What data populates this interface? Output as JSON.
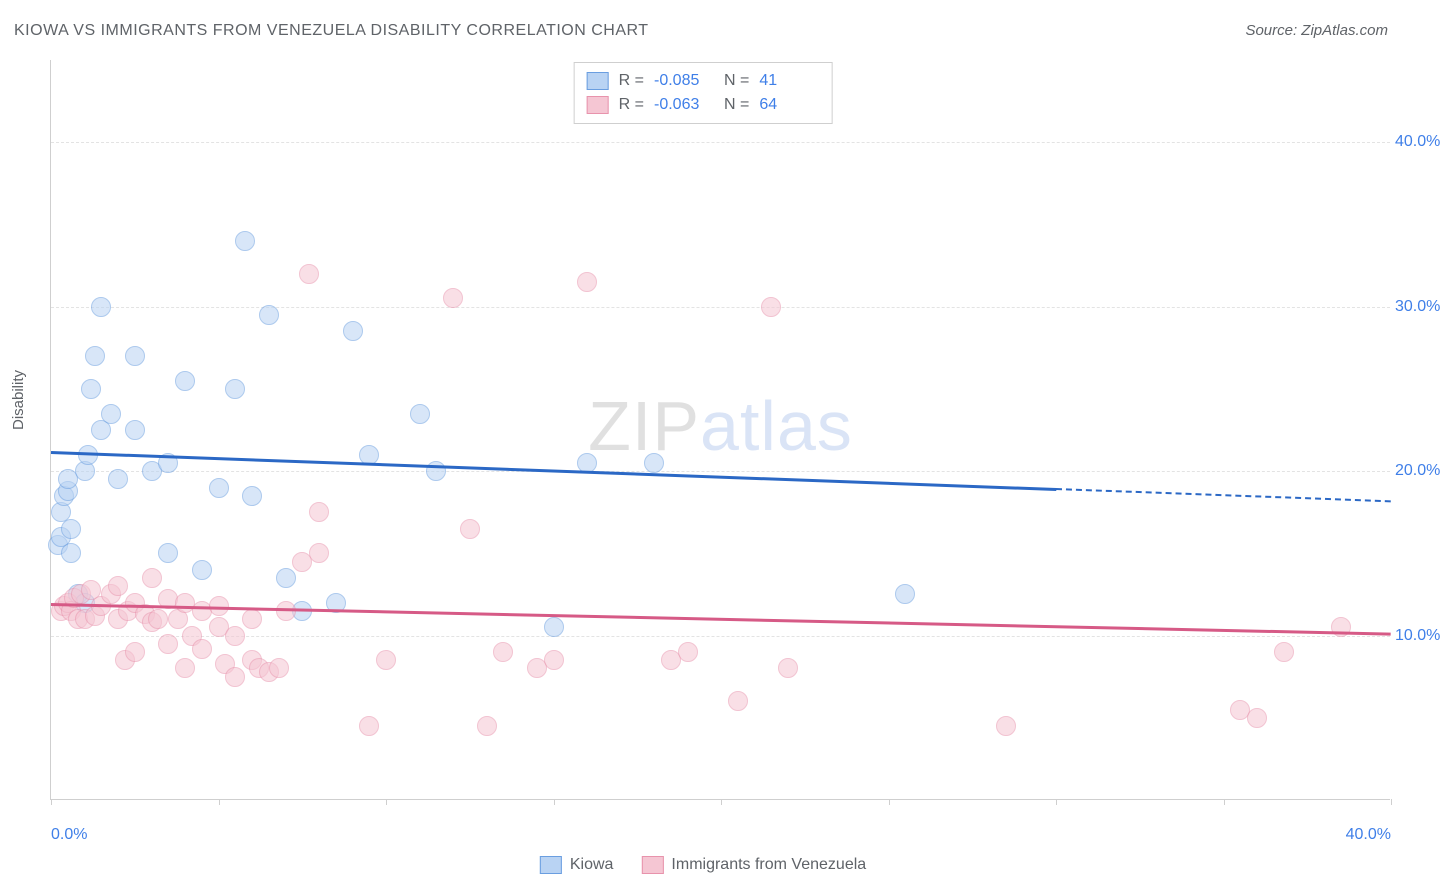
{
  "title": "KIOWA VS IMMIGRANTS FROM VENEZUELA DISABILITY CORRELATION CHART",
  "source": "Source: ZipAtlas.com",
  "ylabel": "Disability",
  "watermark": {
    "part1": "ZIP",
    "part2": "atlas"
  },
  "chart": {
    "type": "scatter",
    "background_color": "#ffffff",
    "grid_color": "#e3e3e3",
    "axis_color": "#cfcfcf",
    "tick_label_color": "#3f7fe8",
    "label_color": "#5f6368",
    "label_fontsize": 15,
    "tick_fontsize": 16,
    "xlim": [
      0,
      40
    ],
    "ylim": [
      0,
      45
    ],
    "y_ticks": [
      10,
      20,
      30,
      40
    ],
    "y_tick_labels": [
      "10.0%",
      "20.0%",
      "30.0%",
      "40.0%"
    ],
    "x_ticks": [
      0,
      5,
      10,
      15,
      20,
      25,
      30,
      35,
      40
    ],
    "x_tick_labels_shown": {
      "0": "0.0%",
      "40": "40.0%"
    },
    "marker_radius": 10,
    "marker_border_width": 1.5,
    "trend_line_width": 3,
    "series": [
      {
        "key": "kiowa",
        "label": "Kiowa",
        "fill": "#b9d3f3",
        "stroke": "#6a9ee0",
        "fill_opacity": 0.55,
        "trend_color": "#2b68c5",
        "R": "-0.085",
        "N": "41",
        "trend": {
          "y_at_x0": 21.2,
          "y_at_x40": 18.2,
          "solid_until_x": 30.0
        },
        "points": [
          [
            0.2,
            15.5
          ],
          [
            0.3,
            16.0
          ],
          [
            0.3,
            17.5
          ],
          [
            0.4,
            18.5
          ],
          [
            0.5,
            18.8
          ],
          [
            0.5,
            19.5
          ],
          [
            0.6,
            15.0
          ],
          [
            0.6,
            16.5
          ],
          [
            0.8,
            12.5
          ],
          [
            1.0,
            12.0
          ],
          [
            1.0,
            20.0
          ],
          [
            1.1,
            21.0
          ],
          [
            1.2,
            25.0
          ],
          [
            1.3,
            27.0
          ],
          [
            1.5,
            22.5
          ],
          [
            1.5,
            30.0
          ],
          [
            1.8,
            23.5
          ],
          [
            2.0,
            19.5
          ],
          [
            2.5,
            22.5
          ],
          [
            2.5,
            27.0
          ],
          [
            3.0,
            20.0
          ],
          [
            3.5,
            15.0
          ],
          [
            3.5,
            20.5
          ],
          [
            4.0,
            25.5
          ],
          [
            4.5,
            14.0
          ],
          [
            5.0,
            19.0
          ],
          [
            5.5,
            25.0
          ],
          [
            5.8,
            34.0
          ],
          [
            6.0,
            18.5
          ],
          [
            6.5,
            29.5
          ],
          [
            7.0,
            13.5
          ],
          [
            7.5,
            11.5
          ],
          [
            8.5,
            12.0
          ],
          [
            9.0,
            28.5
          ],
          [
            9.5,
            21.0
          ],
          [
            11.0,
            23.5
          ],
          [
            11.5,
            20.0
          ],
          [
            15.0,
            10.5
          ],
          [
            16.0,
            20.5
          ],
          [
            18.0,
            20.5
          ],
          [
            25.5,
            12.5
          ]
        ]
      },
      {
        "key": "venezuela",
        "label": "Immigrants from Venezuela",
        "fill": "#f5c6d3",
        "stroke": "#e893ac",
        "fill_opacity": 0.55,
        "trend_color": "#d65a86",
        "R": "-0.063",
        "N": "64",
        "trend": {
          "y_at_x0": 12.0,
          "y_at_x40": 10.2,
          "solid_until_x": 40.0
        },
        "points": [
          [
            0.3,
            11.5
          ],
          [
            0.4,
            11.8
          ],
          [
            0.5,
            12.0
          ],
          [
            0.6,
            11.5
          ],
          [
            0.7,
            12.3
          ],
          [
            0.8,
            11.0
          ],
          [
            0.9,
            12.5
          ],
          [
            1.0,
            11.0
          ],
          [
            1.2,
            12.8
          ],
          [
            1.3,
            11.2
          ],
          [
            1.5,
            11.8
          ],
          [
            1.8,
            12.5
          ],
          [
            2.0,
            11.0
          ],
          [
            2.0,
            13.0
          ],
          [
            2.2,
            8.5
          ],
          [
            2.3,
            11.5
          ],
          [
            2.5,
            12.0
          ],
          [
            2.5,
            9.0
          ],
          [
            2.8,
            11.3
          ],
          [
            3.0,
            10.8
          ],
          [
            3.0,
            13.5
          ],
          [
            3.2,
            11.0
          ],
          [
            3.5,
            12.2
          ],
          [
            3.5,
            9.5
          ],
          [
            3.8,
            11.0
          ],
          [
            4.0,
            12.0
          ],
          [
            4.0,
            8.0
          ],
          [
            4.2,
            10.0
          ],
          [
            4.5,
            11.5
          ],
          [
            4.5,
            9.2
          ],
          [
            5.0,
            10.5
          ],
          [
            5.0,
            11.8
          ],
          [
            5.2,
            8.3
          ],
          [
            5.5,
            7.5
          ],
          [
            5.5,
            10.0
          ],
          [
            6.0,
            8.5
          ],
          [
            6.0,
            11.0
          ],
          [
            6.2,
            8.0
          ],
          [
            6.5,
            7.8
          ],
          [
            7.0,
            11.5
          ],
          [
            7.5,
            14.5
          ],
          [
            7.7,
            32.0
          ],
          [
            8.0,
            15.0
          ],
          [
            8.0,
            17.5
          ],
          [
            9.5,
            4.5
          ],
          [
            10.0,
            8.5
          ],
          [
            12.0,
            30.5
          ],
          [
            12.5,
            16.5
          ],
          [
            13.0,
            4.5
          ],
          [
            13.5,
            9.0
          ],
          [
            14.5,
            8.0
          ],
          [
            15.0,
            8.5
          ],
          [
            16.0,
            31.5
          ],
          [
            18.5,
            8.5
          ],
          [
            19.0,
            9.0
          ],
          [
            20.5,
            6.0
          ],
          [
            21.5,
            30.0
          ],
          [
            22.0,
            8.0
          ],
          [
            28.5,
            4.5
          ],
          [
            35.5,
            5.5
          ],
          [
            36.0,
            5.0
          ],
          [
            36.8,
            9.0
          ],
          [
            38.5,
            10.5
          ],
          [
            6.8,
            8.0
          ]
        ]
      }
    ]
  },
  "legend_top": {
    "R_label": "R =",
    "N_label": "N ="
  },
  "legend_bottom_order": [
    "kiowa",
    "venezuela"
  ]
}
